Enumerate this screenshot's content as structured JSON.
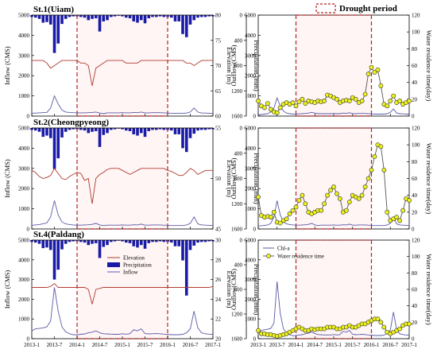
{
  "colors": {
    "precip": "#1a1aa8",
    "elevation": "#b03a2e",
    "inflow": "#5a5aa8",
    "drought": "#b22222",
    "wrt_fill": "#eef21a",
    "chla": "#5a5aa8"
  },
  "legend_drought": "Drought period",
  "chart_data": [
    {
      "type": "line",
      "title": "St.1(Uiam)",
      "ylabel": "Inflow (CMS)",
      "y2label": "Elevation (m)",
      "y3label": "Precipitation (mm)",
      "ylim": [
        0,
        5000
      ],
      "y2lim": [
        60,
        80
      ],
      "y3lim": [
        1600,
        0
      ],
      "yticks": [
        "0",
        "1000",
        "2000",
        "3000",
        "4000",
        "5000"
      ],
      "y2ticks": [
        "60",
        "65",
        "70",
        "75",
        "80"
      ],
      "y3ticks": [
        "1600",
        "1200",
        "800",
        "400",
        "0"
      ],
      "drought": [
        2014.0,
        2016.0
      ],
      "series": [
        {
          "role": "elevation",
          "values": [
            71,
            71,
            71,
            71,
            70.5,
            69.5,
            70,
            70.5,
            71,
            71,
            71,
            71,
            71,
            70.5,
            70.5,
            70,
            66,
            69.5,
            70,
            70.5,
            71,
            71,
            71,
            71,
            71,
            70.5,
            70.5,
            70.5,
            70.5,
            71,
            71,
            71,
            71,
            71,
            71,
            71,
            71,
            71,
            71,
            71,
            71,
            70.5,
            70.5,
            70,
            70.5,
            71,
            71,
            71,
            71
          ]
        },
        {
          "role": "inflow",
          "values": [
            140,
            150,
            160,
            170,
            180,
            400,
            1000,
            600,
            300,
            200,
            180,
            170,
            160,
            160,
            160,
            170,
            180,
            200,
            150,
            120,
            160,
            160,
            160,
            160,
            170,
            160,
            160,
            180,
            170,
            200,
            160,
            160,
            170,
            170,
            170,
            160,
            150,
            140,
            140,
            140,
            140,
            150,
            200,
            400,
            200,
            150,
            150,
            140,
            140
          ]
        },
        {
          "role": "precip",
          "values": [
            30,
            40,
            60,
            120,
            110,
            150,
            600,
            450,
            140,
            60,
            30,
            20,
            20,
            30,
            40,
            80,
            60,
            50,
            260,
            100,
            80,
            30,
            20,
            10,
            20,
            40,
            50,
            100,
            120,
            80,
            130,
            50,
            30,
            30,
            20,
            30,
            30,
            40,
            100,
            100,
            300,
            350,
            150,
            80,
            40,
            30,
            30,
            20,
            20
          ]
        }
      ]
    },
    {
      "type": "line",
      "title": "St.2(Cheongpyeong)",
      "ylabel": "Inflow (CMS)",
      "y2label": "Elevation (m)",
      "y3label": "Precipitation (mm)",
      "ylim": [
        0,
        5000
      ],
      "y2lim": [
        45,
        55
      ],
      "y3lim": [
        1600,
        0
      ],
      "yticks": [
        "0",
        "1000",
        "2000",
        "3000",
        "4000",
        "5000"
      ],
      "y2ticks": [
        "45",
        "50",
        "55"
      ],
      "y3ticks": [
        "1600",
        "1200",
        "800",
        "400",
        "0"
      ],
      "drought": [
        2014.0,
        2016.0
      ],
      "series": [
        {
          "role": "elevation",
          "values": [
            50.8,
            50.6,
            50.2,
            50.0,
            50.1,
            50.3,
            51,
            50.5,
            50,
            49.9,
            50.2,
            50.4,
            50.6,
            50.5,
            49.8,
            50,
            47.5,
            50,
            50.4,
            50.6,
            50.9,
            51,
            51,
            51,
            50.8,
            50.6,
            50.4,
            50.6,
            50.8,
            51,
            51,
            51,
            51,
            51,
            51,
            51,
            50.8,
            50.7,
            50.5,
            50.3,
            50.3,
            50.6,
            51,
            50.8,
            50.4,
            50.6,
            50.8,
            50.8,
            50.8
          ]
        },
        {
          "role": "inflow",
          "values": [
            180,
            200,
            220,
            260,
            300,
            600,
            1400,
            700,
            350,
            250,
            220,
            200,
            190,
            190,
            200,
            210,
            230,
            280,
            200,
            170,
            190,
            190,
            190,
            190,
            200,
            190,
            190,
            210,
            200,
            240,
            190,
            190,
            200,
            200,
            200,
            190,
            180,
            170,
            170,
            170,
            170,
            200,
            280,
            600,
            250,
            200,
            190,
            180,
            180
          ]
        },
        {
          "role": "precip",
          "values": [
            30,
            40,
            60,
            140,
            120,
            160,
            650,
            480,
            150,
            60,
            30,
            20,
            20,
            30,
            40,
            80,
            60,
            50,
            300,
            110,
            80,
            30,
            20,
            10,
            20,
            40,
            50,
            100,
            120,
            80,
            140,
            50,
            30,
            30,
            20,
            30,
            30,
            40,
            100,
            100,
            320,
            380,
            160,
            90,
            40,
            30,
            30,
            20,
            20
          ]
        }
      ]
    },
    {
      "type": "line",
      "title": "St.4(Paldang)",
      "ylabel": "Inflow (CMS)",
      "y2label": "Elevation (m)",
      "y3label": "Precipitation (mm)",
      "ylim": [
        0,
        5000
      ],
      "y2lim": [
        20,
        30
      ],
      "y3lim": [
        1600,
        0
      ],
      "yticks": [
        "0",
        "1000",
        "2000",
        "3000",
        "4000",
        "5000"
      ],
      "y2ticks": [
        "20",
        "22",
        "24",
        "26",
        "28",
        "30"
      ],
      "y3ticks": [
        "1600",
        "1200",
        "800",
        "400",
        "0"
      ],
      "drought": [
        2014.0,
        2016.0
      ],
      "legend": [
        "Elevation",
        "Precipitation",
        "Inflow"
      ],
      "series": [
        {
          "role": "elevation",
          "values": [
            25.2,
            25.2,
            25.2,
            25.2,
            25.2,
            25.3,
            25.6,
            25.2,
            25.2,
            25.2,
            25.2,
            25.2,
            25.2,
            25.2,
            25.2,
            25.0,
            23.5,
            25.0,
            25.1,
            25.2,
            25.2,
            25.2,
            25.2,
            25.2,
            25.2,
            25.2,
            25.2,
            25.2,
            25.2,
            25.2,
            25.2,
            25.2,
            25.2,
            25.2,
            25.2,
            25.2,
            25.2,
            25.2,
            25.2,
            25.2,
            25.2,
            25.2,
            25.2,
            25.2,
            25.2,
            25.2,
            25.2,
            25.2,
            25.3
          ]
        },
        {
          "role": "inflow",
          "values": [
            400,
            500,
            520,
            550,
            600,
            900,
            2600,
            1400,
            600,
            350,
            250,
            200,
            200,
            220,
            240,
            300,
            330,
            400,
            300,
            250,
            240,
            230,
            220,
            220,
            250,
            230,
            250,
            450,
            400,
            500,
            260,
            240,
            250,
            260,
            250,
            230,
            220,
            200,
            200,
            200,
            220,
            300,
            500,
            1400,
            550,
            300,
            250,
            230,
            220
          ]
        },
        {
          "role": "precip",
          "values": [
            30,
            40,
            60,
            130,
            120,
            160,
            640,
            480,
            150,
            60,
            30,
            20,
            20,
            30,
            40,
            80,
            60,
            50,
            290,
            110,
            80,
            30,
            20,
            10,
            20,
            40,
            50,
            100,
            120,
            80,
            140,
            50,
            30,
            30,
            20,
            30,
            30,
            40,
            100,
            100,
            330,
            900,
            160,
            90,
            40,
            30,
            30,
            20,
            20
          ]
        }
      ]
    },
    {
      "type": "line",
      "title": "",
      "ylabel": "Outflow(CMS)",
      "y2label": "Water residence time(day)",
      "ylim": [
        0,
        5000
      ],
      "y2lim": [
        0,
        120
      ],
      "yticks": [
        "0",
        "1000",
        "2000",
        "3000",
        "4000",
        "5000"
      ],
      "y2ticks": [
        "0",
        "20",
        "40",
        "60",
        "80",
        "100",
        "120"
      ],
      "drought": [
        2014.0,
        2016.0
      ],
      "series": [
        {
          "role": "chla",
          "values": [
            60,
            80,
            100,
            120,
            200,
            400,
            900,
            500,
            250,
            150,
            120,
            100,
            100,
            110,
            120,
            130,
            150,
            180,
            150,
            120,
            120,
            120,
            120,
            120,
            130,
            120,
            120,
            150,
            130,
            170,
            120,
            120,
            130,
            130,
            130,
            120,
            110,
            100,
            100,
            100,
            100,
            120,
            180,
            350,
            150,
            120,
            110,
            100,
            100
          ]
        },
        {
          "role": "wrt",
          "values": [
            18,
            12,
            10,
            15,
            8,
            5,
            4,
            10,
            14,
            16,
            14,
            16,
            12,
            17,
            20,
            15,
            18,
            17,
            16,
            18,
            17,
            18,
            25,
            24,
            22,
            20,
            16,
            18,
            19,
            18,
            22,
            20,
            16,
            18,
            26,
            50,
            58,
            52,
            55,
            36,
            14,
            12,
            18,
            24,
            16,
            18,
            14,
            16,
            18
          ]
        }
      ]
    },
    {
      "type": "line",
      "title": "",
      "ylabel": "Outflow(CMS)",
      "y2label": "Water residence time(day)",
      "ylim": [
        0,
        5000
      ],
      "y2lim": [
        0,
        120
      ],
      "yticks": [
        "0",
        "1000",
        "2000",
        "3000",
        "4000",
        "5000"
      ],
      "y2ticks": [
        "0",
        "20",
        "40",
        "60",
        "80",
        "100",
        "120"
      ],
      "drought": [
        2014.0,
        2016.0
      ],
      "series": [
        {
          "role": "chla",
          "values": [
            150,
            160,
            180,
            200,
            280,
            600,
            1400,
            700,
            350,
            250,
            220,
            200,
            190,
            190,
            200,
            210,
            230,
            280,
            200,
            170,
            190,
            190,
            190,
            190,
            200,
            190,
            190,
            210,
            200,
            240,
            190,
            190,
            200,
            200,
            200,
            190,
            180,
            170,
            170,
            170,
            170,
            200,
            280,
            600,
            250,
            200,
            190,
            180,
            180
          ]
        },
        {
          "role": "wrt",
          "values": [
            38,
            16,
            14,
            15,
            14,
            20,
            8,
            7,
            10,
            12,
            18,
            22,
            26,
            34,
            40,
            30,
            20,
            18,
            20,
            22,
            22,
            30,
            40,
            46,
            50,
            42,
            36,
            20,
            22,
            32,
            40,
            38,
            36,
            40,
            50,
            60,
            70,
            86,
            100,
            98,
            70,
            20,
            10,
            12,
            14,
            10,
            22,
            36,
            34
          ]
        }
      ]
    },
    {
      "type": "line",
      "title": "",
      "ylabel": "Outflow(CMS)",
      "y2label": "Water residence time(day)",
      "ylim": [
        0,
        5000
      ],
      "y2lim": [
        0,
        120
      ],
      "yticks": [
        "0",
        "1000",
        "2000",
        "3000",
        "4000",
        "5000"
      ],
      "y2ticks": [
        "0",
        "20",
        "40",
        "60",
        "80",
        "100",
        "120"
      ],
      "drought": [
        2014.0,
        2016.0
      ],
      "legend": [
        "Chl-a",
        "Water residence time"
      ],
      "series": [
        {
          "role": "chla",
          "values": [
            350,
            420,
            450,
            480,
            520,
            800,
            2900,
            1300,
            500,
            300,
            200,
            150,
            160,
            190,
            200,
            250,
            280,
            350,
            260,
            210,
            200,
            190,
            190,
            190,
            210,
            190,
            210,
            380,
            330,
            420,
            220,
            200,
            210,
            220,
            210,
            190,
            180,
            160,
            160,
            160,
            180,
            260,
            420,
            1350,
            460,
            250,
            210,
            190,
            180
          ]
        },
        {
          "role": "wrt",
          "values": [
            10,
            6,
            6,
            5,
            5,
            4,
            3,
            4,
            5,
            6,
            8,
            10,
            12,
            14,
            12,
            10,
            10,
            12,
            11,
            12,
            12,
            12,
            14,
            14,
            14,
            12,
            12,
            14,
            14,
            16,
            14,
            14,
            16,
            18,
            18,
            20,
            22,
            24,
            24,
            20,
            14,
            8,
            6,
            8,
            10,
            12,
            16,
            18,
            18
          ]
        }
      ]
    }
  ],
  "xaxis": {
    "start": 2013.0,
    "step": 0.0833333,
    "tick_labels": [
      "2013-1",
      "2013-7",
      "2014-1",
      "2014-7",
      "2015-1",
      "2015-7",
      "2016-1",
      "2016-7",
      "2017-1"
    ]
  }
}
